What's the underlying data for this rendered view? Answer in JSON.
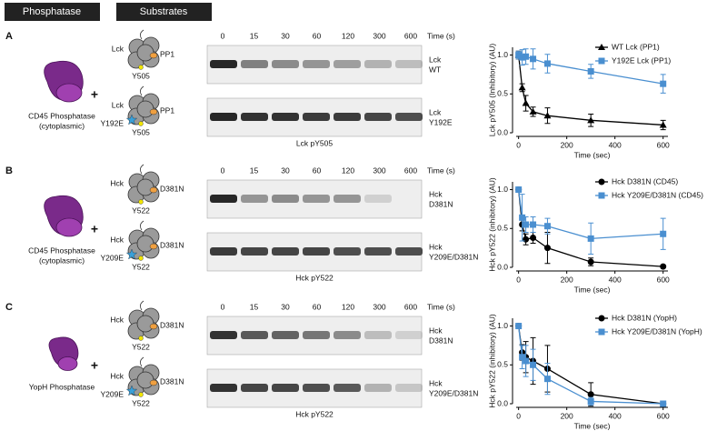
{
  "headers": [
    "Phosphatase",
    "Substrates"
  ],
  "panels": [
    {
      "label": "A",
      "phosphatase": [
        "CD45 Phosphatase",
        "(cytoplasmic)"
      ],
      "plus": "+",
      "substrates": [
        {
          "kinase": "Lck",
          "partner": "PP1",
          "site": "Y505"
        },
        {
          "kinase": "Lck",
          "mutation": "Y192E",
          "partner": "PP1",
          "site": "Y505"
        }
      ],
      "lanes": [
        "0",
        "15",
        "30",
        "60",
        "120",
        "300",
        "600"
      ],
      "time_unit": "Time (s)",
      "blots": [
        [
          "Lck",
          "WT"
        ],
        [
          "Lck",
          "Y192E"
        ]
      ],
      "blot_caption": "Lck pY505"
    },
    {
      "label": "B",
      "phosphatase": [
        "CD45 Phosphatase",
        "(cytoplasmic)"
      ],
      "plus": "+",
      "substrates": [
        {
          "kinase": "Hck",
          "partner": "D381N",
          "site": "Y522"
        },
        {
          "kinase": "Hck",
          "mutation": "Y209E",
          "partner": "D381N",
          "site": "Y522"
        }
      ],
      "lanes": [
        "0",
        "15",
        "30",
        "60",
        "120",
        "300",
        "600"
      ],
      "time_unit": "Time (s)",
      "blots": [
        [
          "Hck",
          "D381N"
        ],
        [
          "Hck",
          "Y209E/D381N"
        ]
      ],
      "blot_caption": "Hck pY522"
    },
    {
      "label": "C",
      "phosphatase": [
        "YopH Phosphatase"
      ],
      "plus": "+",
      "substrates": [
        {
          "kinase": "Hck",
          "partner": "D381N",
          "site": "Y522"
        },
        {
          "kinase": "Hck",
          "mutation": "Y209E",
          "partner": "D381N",
          "site": "Y522"
        }
      ],
      "lanes": [
        "0",
        "15",
        "30",
        "60",
        "120",
        "300",
        "600"
      ],
      "time_unit": "Time (s)",
      "blots": [
        [
          "Hck",
          "D381N"
        ],
        [
          "Hck",
          "Y209E/D381N"
        ]
      ],
      "blot_caption": "Hck pY522"
    }
  ],
  "chart_data": [
    {
      "type": "line",
      "xlabel": "Time (sec)",
      "ylabel": "Lck pY505 (Inhibitory) (AU)",
      "x": [
        0,
        15,
        30,
        60,
        120,
        300,
        600
      ],
      "xlim": [
        -10,
        620
      ],
      "xticks": [
        0,
        200,
        400,
        600
      ],
      "ylim": [
        0,
        1.1
      ],
      "yticks": [
        {
          "value": 0,
          "label": "0.0"
        },
        0.5,
        {
          "value": 1,
          "label": "1.0"
        }
      ],
      "legend": "upper right",
      "series": [
        {
          "name": "WT Lck (PP1)",
          "color": "#000000",
          "marker": "^",
          "values": [
            1.0,
            0.58,
            0.38,
            0.27,
            0.22,
            0.16,
            0.1
          ],
          "errors": [
            0.05,
            0.05,
            0.1,
            0.06,
            0.1,
            0.08,
            0.06
          ]
        },
        {
          "name": "Y192E Lck (PP1)",
          "color": "#4a8fd0",
          "marker": "s",
          "values": [
            1.0,
            0.97,
            0.98,
            0.95,
            0.89,
            0.79,
            0.63
          ],
          "errors": [
            0.05,
            0.1,
            0.1,
            0.13,
            0.12,
            0.09,
            0.12
          ]
        }
      ]
    },
    {
      "type": "line",
      "xlabel": "Time (sec)",
      "ylabel": "Hck pY522 (inhibitory) (AU)",
      "x": [
        0,
        15,
        30,
        60,
        120,
        300,
        600
      ],
      "xlim": [
        -10,
        620
      ],
      "xticks": [
        0,
        200,
        400,
        600
      ],
      "ylim": [
        0,
        1.1
      ],
      "yticks": [
        {
          "value": 0,
          "label": "0.0"
        },
        0.5,
        {
          "value": 1,
          "label": "1.0"
        }
      ],
      "legend": "upper right",
      "series": [
        {
          "name": "Hck D381N (CD45)",
          "color": "#000000",
          "marker": "o",
          "values": [
            1.0,
            0.55,
            0.36,
            0.38,
            0.25,
            0.07,
            0.01
          ],
          "errors": [
            0.02,
            0.08,
            0.07,
            0.07,
            0.2,
            0.05,
            0.01
          ]
        },
        {
          "name": "Hck Y209E/D381N (CD45)",
          "color": "#4a8fd0",
          "marker": "s",
          "values": [
            1.0,
            0.64,
            0.55,
            0.55,
            0.53,
            0.37,
            0.43
          ],
          "errors": [
            0.02,
            0.3,
            0.1,
            0.1,
            0.1,
            0.2,
            0.2
          ]
        }
      ]
    },
    {
      "type": "line",
      "xlabel": "Time (sec)",
      "ylabel": "Hck pY522 (inhibitory) (AU)",
      "x": [
        0,
        15,
        30,
        60,
        120,
        300,
        600
      ],
      "xlim": [
        -10,
        620
      ],
      "xticks": [
        0,
        200,
        400,
        600
      ],
      "ylim": [
        0,
        1.1
      ],
      "yticks": [
        {
          "value": 0,
          "label": "0.0"
        },
        0.5,
        {
          "value": 1,
          "label": "1.0"
        }
      ],
      "legend": "upper right",
      "series": [
        {
          "name": "Hck D381N (YopH)",
          "color": "#000000",
          "marker": "o",
          "values": [
            1.0,
            0.66,
            0.6,
            0.55,
            0.45,
            0.12,
            0.0
          ],
          "errors": [
            0.02,
            0.1,
            0.2,
            0.3,
            0.3,
            0.15,
            0.01
          ]
        },
        {
          "name": "Hck Y209E/D381N (YopH)",
          "color": "#4a8fd0",
          "marker": "s",
          "values": [
            1.0,
            0.6,
            0.55,
            0.5,
            0.32,
            0.03,
            0.0
          ],
          "errors": [
            0.02,
            0.15,
            0.2,
            0.2,
            0.2,
            0.05,
            0.01
          ]
        }
      ]
    }
  ]
}
